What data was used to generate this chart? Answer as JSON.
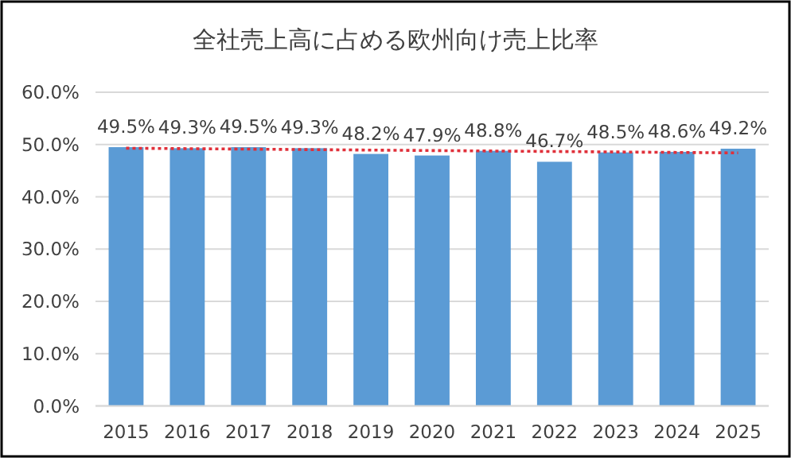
{
  "chart_data": {
    "type": "bar",
    "title": "全社売上高に占める欧州向け売上比率",
    "categories": [
      "2015",
      "2016",
      "2017",
      "2018",
      "2019",
      "2020",
      "2021",
      "2022",
      "2023",
      "2024",
      "2025"
    ],
    "series": [
      {
        "color": "#5b9bd5",
        "values": [
          49.5,
          49.3,
          49.5,
          49.3,
          48.2,
          47.9,
          48.8,
          46.7,
          48.5,
          48.6,
          49.2
        ],
        "value_labels": [
          "49.5%",
          "49.3%",
          "49.5%",
          "49.3%",
          "48.2%",
          "47.9%",
          "48.8%",
          "46.7%",
          "48.5%",
          "48.6%",
          "49.2%"
        ]
      },
      {
        "type": "line",
        "color": "#e0303a",
        "line_style": "dotted",
        "values": [
          49.3,
          null,
          null,
          null,
          null,
          null,
          null,
          null,
          null,
          null,
          48.4
        ]
      }
    ],
    "ylim": [
      0,
      60
    ],
    "yticks": [
      {
        "value": 0,
        "label": "0.0%"
      },
      {
        "value": 10,
        "label": "10.0%"
      },
      {
        "value": 20,
        "label": "20.0%"
      },
      {
        "value": 30,
        "label": "30.0%"
      },
      {
        "value": 40,
        "label": "40.0%"
      },
      {
        "value": 50,
        "label": "50.0%"
      },
      {
        "value": 60,
        "label": "60.0%"
      }
    ],
    "grid": "y"
  }
}
